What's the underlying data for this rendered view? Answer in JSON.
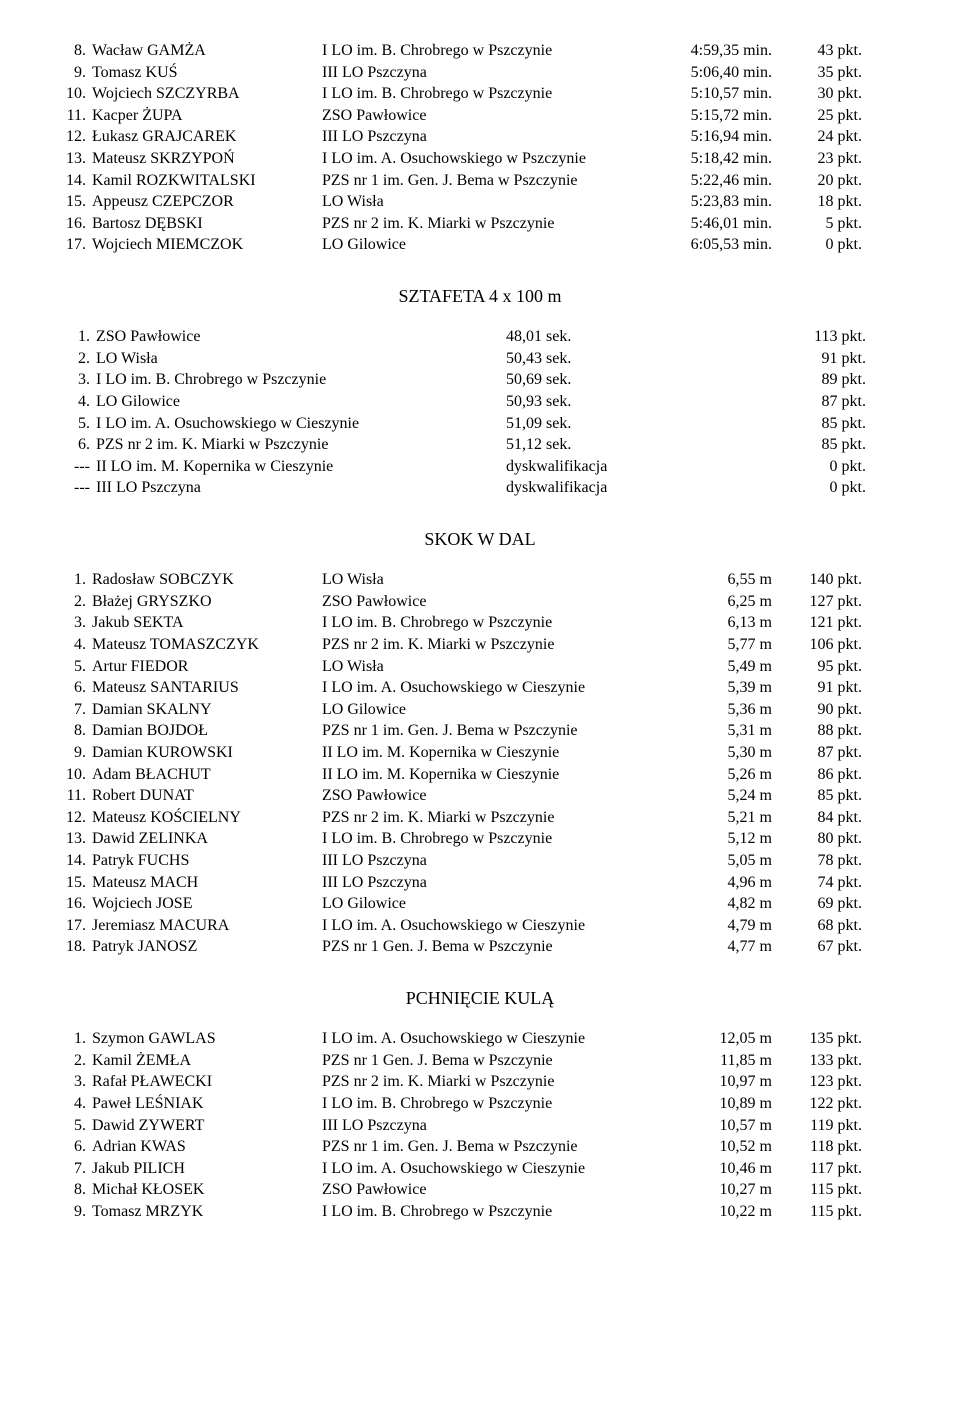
{
  "titles": {
    "relay": "SZTAFETA  4 x 100 m",
    "longjump": "SKOK  W  DAL",
    "shotput": "PCHNIĘCIE  KULĄ"
  },
  "top_list": [
    {
      "n": "8.",
      "name": "Wacław GAMŻA",
      "school": "I LO im. B. Chrobrego w Pszczynie",
      "val": "4:59,35 min.",
      "pts": "43 pkt."
    },
    {
      "n": "9.",
      "name": "Tomasz KUŚ",
      "school": "III LO Pszczyna",
      "val": "5:06,40 min.",
      "pts": "35 pkt."
    },
    {
      "n": "10.",
      "name": "Wojciech SZCZYRBA",
      "school": "I LO im. B. Chrobrego w Pszczynie",
      "val": "5:10,57 min.",
      "pts": "30 pkt."
    },
    {
      "n": "11.",
      "name": "Kacper ŻUPA",
      "school": "ZSO Pawłowice",
      "val": "5:15,72 min.",
      "pts": "25 pkt."
    },
    {
      "n": "12.",
      "name": "Łukasz GRAJCAREK",
      "school": "III LO Pszczyna",
      "val": "5:16,94 min.",
      "pts": "24 pkt."
    },
    {
      "n": "13.",
      "name": "Mateusz SKRZYPOŃ",
      "school": "I LO im. A. Osuchowskiego w Pszczynie",
      "val": "5:18,42 min.",
      "pts": "23 pkt."
    },
    {
      "n": "14.",
      "name": "Kamil ROZKWITALSKI",
      "school": "PZS nr 1 im. Gen. J. Bema w Pszczynie",
      "val": "5:22,46 min.",
      "pts": "20 pkt."
    },
    {
      "n": "15.",
      "name": "Appeusz CZEPCZOR",
      "school": "LO Wisła",
      "val": "5:23,83 min.",
      "pts": "18 pkt."
    },
    {
      "n": "16.",
      "name": "Bartosz DĘBSKI",
      "school": "PZS nr 2 im. K. Miarki w Pszczynie",
      "val": "5:46,01 min.",
      "pts": "5 pkt."
    },
    {
      "n": "17.",
      "name": "Wojciech MIEMCZOK",
      "school": "LO Gilowice",
      "val": "6:05,53 min.",
      "pts": "0 pkt."
    }
  ],
  "relay": [
    {
      "n": "1.",
      "name": "ZSO Pawłowice",
      "val": "48,01 sek.",
      "pts": "113 pkt."
    },
    {
      "n": "2.",
      "name": "LO Wisła",
      "val": "50,43 sek.",
      "pts": "91 pkt."
    },
    {
      "n": "3.",
      "name": "I LO im. B. Chrobrego w Pszczynie",
      "val": "50,69 sek.",
      "pts": "89 pkt."
    },
    {
      "n": "4.",
      "name": "LO Gilowice",
      "val": "50,93 sek.",
      "pts": "87 pkt."
    },
    {
      "n": "5.",
      "name": "I LO im. A. Osuchowskiego w Cieszynie",
      "val": "51,09 sek.",
      "pts": "85 pkt."
    },
    {
      "n": "6.",
      "name": "PZS nr 2 im. K. Miarki w Pszczynie",
      "val": "51,12 sek.",
      "pts": "85 pkt."
    },
    {
      "n": "---",
      "name": "II LO im. M. Kopernika w Cieszynie",
      "val": "dyskwalifikacja",
      "pts": "0 pkt."
    },
    {
      "n": "---",
      "name": "III LO Pszczyna",
      "val": "dyskwalifikacja",
      "pts": "0 pkt."
    }
  ],
  "longjump": [
    {
      "n": "1.",
      "name": "Radosław SOBCZYK",
      "school": "LO Wisła",
      "val": "6,55 m",
      "pts": "140 pkt."
    },
    {
      "n": "2.",
      "name": "Błażej GRYSZKO",
      "school": "ZSO Pawłowice",
      "val": "6,25 m",
      "pts": "127 pkt."
    },
    {
      "n": "3.",
      "name": "Jakub SEKTA",
      "school": "I LO im. B. Chrobrego w Pszczynie",
      "val": "6,13 m",
      "pts": "121 pkt."
    },
    {
      "n": "4.",
      "name": "Mateusz TOMASZCZYK",
      "school": "PZS nr 2 im. K. Miarki w Pszczynie",
      "val": "5,77 m",
      "pts": "106 pkt."
    },
    {
      "n": "5.",
      "name": "Artur FIEDOR",
      "school": "LO Wisła",
      "val": "5,49 m",
      "pts": "95 pkt."
    },
    {
      "n": "6.",
      "name": "Mateusz SANTARIUS",
      "school": "I LO im. A. Osuchowskiego w Cieszynie",
      "val": "5,39 m",
      "pts": "91 pkt."
    },
    {
      "n": "7.",
      "name": "Damian SKALNY",
      "school": "LO Gilowice",
      "val": "5,36 m",
      "pts": "90 pkt."
    },
    {
      "n": "8.",
      "name": "Damian BOJDOŁ",
      "school": "PZS nr 1 im. Gen. J. Bema w Pszczynie",
      "val": "5,31 m",
      "pts": "88 pkt."
    },
    {
      "n": "9.",
      "name": "Damian KUROWSKI",
      "school": "II LO im. M. Kopernika w Cieszynie",
      "val": "5,30 m",
      "pts": "87 pkt."
    },
    {
      "n": "10.",
      "name": "Adam BŁACHUT",
      "school": "II LO im. M. Kopernika w Cieszynie",
      "val": "5,26 m",
      "pts": "86 pkt."
    },
    {
      "n": "11.",
      "name": "Robert DUNAT",
      "school": "ZSO Pawłowice",
      "val": "5,24 m",
      "pts": "85 pkt."
    },
    {
      "n": "12.",
      "name": "Mateusz KOŚCIELNY",
      "school": "PZS nr 2 im. K. Miarki w Pszczynie",
      "val": "5,21 m",
      "pts": "84 pkt."
    },
    {
      "n": "13.",
      "name": "Dawid ZELINKA",
      "school": "I LO im. B. Chrobrego w Pszczynie",
      "val": "5,12 m",
      "pts": "80 pkt."
    },
    {
      "n": "14.",
      "name": "Patryk FUCHS",
      "school": "III LO Pszczyna",
      "val": "5,05 m",
      "pts": "78 pkt."
    },
    {
      "n": "15.",
      "name": "Mateusz MACH",
      "school": "III LO Pszczyna",
      "val": "4,96 m",
      "pts": "74 pkt."
    },
    {
      "n": "16.",
      "name": "Wojciech JOSE",
      "school": "LO Gilowice",
      "val": "4,82 m",
      "pts": "69 pkt."
    },
    {
      "n": "17.",
      "name": "Jeremiasz MACURA",
      "school": "I LO im. A. Osuchowskiego w Cieszynie",
      "val": "4,79 m",
      "pts": "68 pkt."
    },
    {
      "n": "18.",
      "name": "Patryk JANOSZ",
      "school": "PZS nr 1 Gen. J. Bema w Pszczynie",
      "val": "4,77 m",
      "pts": "67 pkt."
    }
  ],
  "shotput": [
    {
      "n": "1.",
      "name": "Szymon GAWLAS",
      "school": "I LO im. A. Osuchowskiego w Cieszynie",
      "val": "12,05 m",
      "pts": "135 pkt."
    },
    {
      "n": "2.",
      "name": "Kamil ŻEMŁA",
      "school": "PZS nr 1 Gen. J. Bema w Pszczynie",
      "val": "11,85 m",
      "pts": "133 pkt."
    },
    {
      "n": "3.",
      "name": "Rafał PŁAWECKI",
      "school": "PZS nr 2 im. K. Miarki w Pszczynie",
      "val": "10,97 m",
      "pts": "123 pkt."
    },
    {
      "n": "4.",
      "name": "Paweł LEŚNIAK",
      "school": "I LO im. B. Chrobrego w Pszczynie",
      "val": "10,89 m",
      "pts": "122 pkt."
    },
    {
      "n": "5.",
      "name": "Dawid ZYWERT",
      "school": "III LO Pszczyna",
      "val": "10,57 m",
      "pts": "119 pkt."
    },
    {
      "n": "6.",
      "name": "Adrian KWAS",
      "school": "PZS nr 1 im. Gen. J. Bema w Pszczynie",
      "val": "10,52 m",
      "pts": "118 pkt."
    },
    {
      "n": "7.",
      "name": "Jakub PILICH",
      "school": "I LO im. A. Osuchowskiego w Cieszynie",
      "val": "10,46 m",
      "pts": "117 pkt."
    },
    {
      "n": "8.",
      "name": "Michał KŁOSEK",
      "school": "ZSO Pawłowice",
      "val": "10,27 m",
      "pts": "115 pkt."
    },
    {
      "n": "9.",
      "name": "Tomasz MRZYK",
      "school": "I LO im. B. Chrobrego w Pszczynie",
      "val": "10,22 m",
      "pts": "115 pkt."
    }
  ]
}
